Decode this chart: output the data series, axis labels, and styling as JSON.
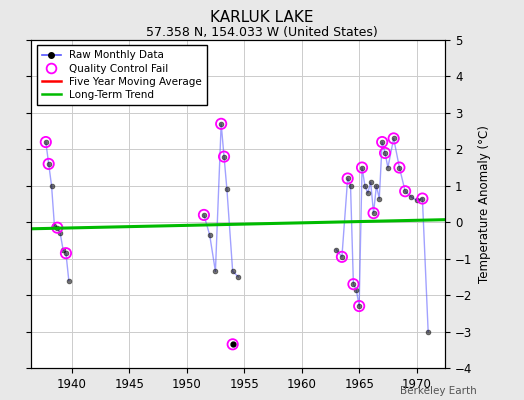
{
  "title": "KARLUK LAKE",
  "subtitle": "57.358 N, 154.033 W (United States)",
  "ylabel": "Temperature Anomaly (°C)",
  "watermark": "Berkeley Earth",
  "xlim": [
    1936.5,
    1972.5
  ],
  "ylim": [
    -4,
    5
  ],
  "xticks": [
    1940,
    1945,
    1950,
    1955,
    1960,
    1965,
    1970
  ],
  "yticks": [
    -4,
    -3,
    -2,
    -1,
    0,
    1,
    2,
    3,
    4,
    5
  ],
  "background_color": "#e8e8e8",
  "groups": [
    {
      "x": [
        1937.75,
        1938.0,
        1938.25,
        1938.5,
        1938.75,
        1939.0,
        1939.25,
        1939.5,
        1939.75
      ],
      "y": [
        2.2,
        1.6,
        1.0,
        -0.1,
        -0.15,
        -0.3,
        -0.75,
        -0.85,
        -1.6
      ]
    },
    {
      "x": [
        1951.5,
        1952.0,
        1952.5,
        1953.0,
        1953.25,
        1953.5,
        1954.0,
        1954.5
      ],
      "y": [
        0.2,
        -0.35,
        -1.35,
        2.7,
        1.8,
        0.9,
        -1.35,
        -1.5
      ]
    },
    {
      "x": [
        1963.0,
        1963.5,
        1964.0,
        1964.25,
        1964.5,
        1964.75,
        1965.0,
        1965.25,
        1965.5,
        1965.75,
        1966.0,
        1966.25,
        1966.5,
        1966.75,
        1967.0,
        1967.25,
        1967.5,
        1968.0,
        1968.5,
        1969.0,
        1969.5,
        1970.0,
        1970.5,
        1971.0
      ],
      "y": [
        -0.75,
        -0.95,
        1.2,
        1.0,
        -1.7,
        -1.85,
        -2.3,
        1.5,
        1.0,
        0.8,
        1.1,
        0.25,
        1.0,
        0.65,
        2.2,
        1.9,
        1.5,
        2.3,
        1.5,
        0.85,
        0.7,
        0.6,
        0.65,
        -3.0
      ]
    }
  ],
  "qc_fail_points": [
    [
      1937.75,
      2.2
    ],
    [
      1938.0,
      1.6
    ],
    [
      1938.75,
      -0.15
    ],
    [
      1939.5,
      -0.85
    ],
    [
      1951.5,
      0.2
    ],
    [
      1953.0,
      2.7
    ],
    [
      1953.25,
      1.8
    ],
    [
      1963.5,
      -0.95
    ],
    [
      1964.0,
      1.2
    ],
    [
      1964.5,
      -1.7
    ],
    [
      1965.0,
      -2.3
    ],
    [
      1965.25,
      1.5
    ],
    [
      1966.25,
      0.25
    ],
    [
      1967.0,
      2.2
    ],
    [
      1967.25,
      1.9
    ],
    [
      1968.0,
      2.3
    ],
    [
      1968.5,
      1.5
    ],
    [
      1969.0,
      0.85
    ],
    [
      1970.5,
      0.65
    ]
  ],
  "lone_qc": [
    [
      1954.0,
      -3.35
    ]
  ],
  "long_term_trend": {
    "x": [
      1936.5,
      1972.5
    ],
    "y": [
      -0.18,
      0.07
    ]
  },
  "line_color": "#5555ff",
  "line_alpha": 0.55,
  "dot_color": "black",
  "dot_size": 3.5,
  "qc_color": "magenta",
  "trend_color": "#00bb00",
  "mavg_color": "red",
  "grid_color": "#cccccc",
  "title_fontsize": 11,
  "subtitle_fontsize": 9,
  "label_fontsize": 8.5
}
